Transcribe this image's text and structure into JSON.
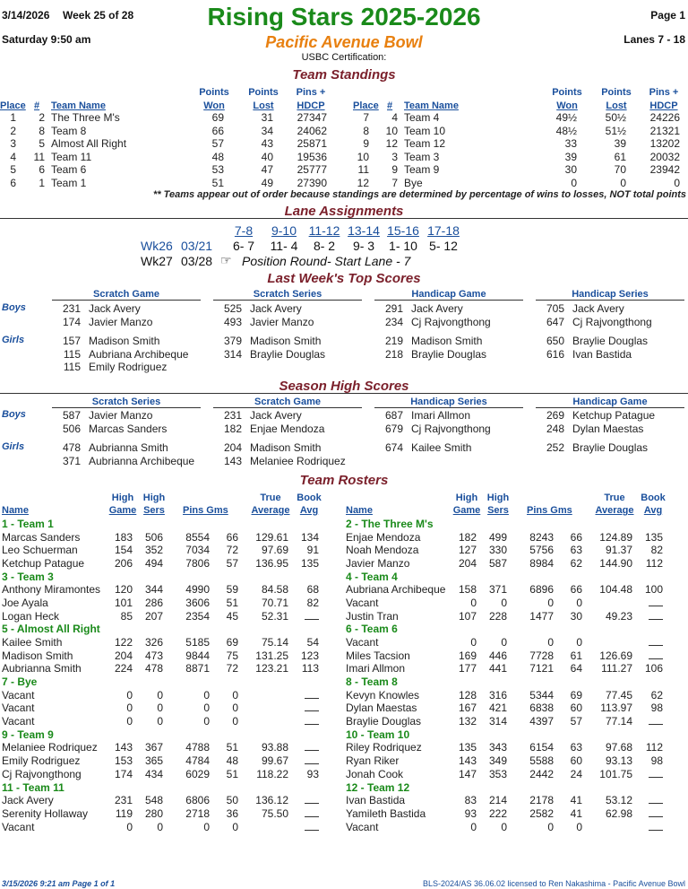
{
  "header": {
    "date": "3/14/2026",
    "week": "Week 25 of 28",
    "title": "Rising Stars 2025-2026",
    "page": "Page 1",
    "day_time": "Saturday   9:50 am",
    "bowl": "Pacific Avenue Bowl",
    "lanes": "Lanes 7 - 18",
    "usbc": "USBC Certification:"
  },
  "standings": {
    "title": "Team Standings",
    "headers": {
      "place": "Place",
      "num": "#",
      "team": "Team Name",
      "won_1": "Points",
      "won_2": "Won",
      "lost_1": "Points",
      "lost_2": "Lost",
      "pins_1": "Pins +",
      "pins_2": "HDCP"
    },
    "left": [
      {
        "place": "1",
        "num": "2",
        "team": "The Three M's",
        "won": "69",
        "lost": "31",
        "pins": "27347"
      },
      {
        "place": "2",
        "num": "8",
        "team": "Team 8",
        "won": "66",
        "lost": "34",
        "pins": "24062"
      },
      {
        "place": "3",
        "num": "5",
        "team": "Almost All Right",
        "won": "57",
        "lost": "43",
        "pins": "25871"
      },
      {
        "place": "4",
        "num": "11",
        "team": "Team 11",
        "won": "48",
        "lost": "40",
        "pins": "19536"
      },
      {
        "place": "5",
        "num": "6",
        "team": "Team 6",
        "won": "53",
        "lost": "47",
        "pins": "25777"
      },
      {
        "place": "6",
        "num": "1",
        "team": "Team 1",
        "won": "51",
        "lost": "49",
        "pins": "27390"
      }
    ],
    "right": [
      {
        "place": "7",
        "num": "4",
        "team": "Team 4",
        "won": "49½",
        "lost": "50½",
        "pins": "24226"
      },
      {
        "place": "8",
        "num": "10",
        "team": "Team 10",
        "won": "48½",
        "lost": "51½",
        "pins": "21321"
      },
      {
        "place": "9",
        "num": "12",
        "team": "Team 12",
        "won": "33",
        "lost": "39",
        "pins": "13202"
      },
      {
        "place": "10",
        "num": "3",
        "team": "Team 3",
        "won": "39",
        "lost": "61",
        "pins": "20032"
      },
      {
        "place": "11",
        "num": "9",
        "team": "Team 9",
        "won": "30",
        "lost": "70",
        "pins": "23942"
      },
      {
        "place": "12",
        "num": "7",
        "team": "Bye",
        "won": "0",
        "lost": "0",
        "pins": "0"
      }
    ],
    "note": "** Teams appear out of order because standings are determined by percentage of wins to losses, NOT total points"
  },
  "lanes": {
    "title": "Lane Assignments",
    "headers": [
      "7-8",
      "9-10",
      "11-12",
      "13-14",
      "15-16",
      "17-18"
    ],
    "wk26": {
      "week": "Wk26",
      "date": "03/21",
      "pairs": [
        "6- 7",
        "11- 4",
        "8- 2",
        "9- 3",
        "1- 10",
        "5- 12"
      ]
    },
    "wk27": {
      "week": "Wk27",
      "date": "03/28",
      "icon": "☞",
      "text": "Position Round- Start Lane - 7"
    }
  },
  "last_week": {
    "title": "Last Week's Top Scores",
    "columns": [
      "Scratch Game",
      "Scratch Series",
      "Handicap Game",
      "Handicap Series"
    ],
    "boys_label": "Boys",
    "girls_label": "Girls",
    "boys": [
      [
        {
          "s": "231",
          "n": "Jack Avery"
        },
        {
          "s": "174",
          "n": "Javier Manzo"
        }
      ],
      [
        {
          "s": "525",
          "n": "Jack Avery"
        },
        {
          "s": "493",
          "n": "Javier Manzo"
        }
      ],
      [
        {
          "s": "291",
          "n": "Jack Avery"
        },
        {
          "s": "234",
          "n": "Cj Rajvongthong"
        }
      ],
      [
        {
          "s": "705",
          "n": "Jack Avery"
        },
        {
          "s": "647",
          "n": "Cj Rajvongthong"
        }
      ]
    ],
    "girls": [
      [
        {
          "s": "157",
          "n": "Madison Smith"
        },
        {
          "s": "115",
          "n": "Aubriana Archibeque"
        },
        {
          "s": "115",
          "n": "Emily Rodriguez"
        }
      ],
      [
        {
          "s": "379",
          "n": "Madison Smith"
        },
        {
          "s": "314",
          "n": "Braylie Douglas"
        }
      ],
      [
        {
          "s": "219",
          "n": "Madison Smith"
        },
        {
          "s": "218",
          "n": "Braylie Douglas"
        }
      ],
      [
        {
          "s": "650",
          "n": "Braylie Douglas"
        },
        {
          "s": "616",
          "n": "Ivan Bastida"
        }
      ]
    ]
  },
  "season_high": {
    "title": "Season High Scores",
    "columns": [
      "Scratch Series",
      "Scratch Game",
      "Handicap Series",
      "Handicap Game"
    ],
    "boys": [
      [
        {
          "s": "587",
          "n": "Javier Manzo"
        },
        {
          "s": "506",
          "n": "Marcas Sanders"
        }
      ],
      [
        {
          "s": "231",
          "n": "Jack Avery"
        },
        {
          "s": "182",
          "n": "Enjae Mendoza"
        }
      ],
      [
        {
          "s": "687",
          "n": "Imari Allmon"
        },
        {
          "s": "679",
          "n": "Cj Rajvongthong"
        }
      ],
      [
        {
          "s": "269",
          "n": "Ketchup Patague"
        },
        {
          "s": "248",
          "n": "Dylan Maestas"
        }
      ]
    ],
    "girls": [
      [
        {
          "s": "478",
          "n": "Aubrianna Smith"
        },
        {
          "s": "371",
          "n": "Aubrianna Archibeque"
        }
      ],
      [
        {
          "s": "204",
          "n": "Madison Smith"
        },
        {
          "s": "143",
          "n": "Melaniee Rodriquez"
        }
      ],
      [
        {
          "s": "674",
          "n": "Kailee Smith"
        }
      ],
      [
        {
          "s": "252",
          "n": "Braylie Douglas"
        }
      ]
    ]
  },
  "rosters": {
    "title": "Team Rosters",
    "headers": {
      "name": "Name",
      "hg_1": "High",
      "hg_2": "Game",
      "hs_1": "High",
      "hs_2": "Sers",
      "pins": "Pins  Gms",
      "avg_1": "True",
      "avg_2": "Average",
      "book_1": "Book",
      "book_2": "Avg"
    },
    "left": [
      {
        "team": "1 - Team 1",
        "players": [
          {
            "n": "Marcas Sanders",
            "hg": "183",
            "hs": "506",
            "p": "8554",
            "g": "66",
            "a": "129.61",
            "b": "134"
          },
          {
            "n": "Leo Schuerman",
            "hg": "154",
            "hs": "352",
            "p": "7034",
            "g": "72",
            "a": "97.69",
            "b": "91"
          },
          {
            "n": "Ketchup Patague",
            "hg": "206",
            "hs": "494",
            "p": "7806",
            "g": "57",
            "a": "136.95",
            "b": "135"
          }
        ]
      },
      {
        "team": "3 - Team 3",
        "players": [
          {
            "n": "Anthony Miramontes",
            "hg": "120",
            "hs": "344",
            "p": "4990",
            "g": "59",
            "a": "84.58",
            "b": "68"
          },
          {
            "n": "Joe Ayala",
            "hg": "101",
            "hs": "286",
            "p": "3606",
            "g": "51",
            "a": "70.71",
            "b": "82"
          },
          {
            "n": "Logan Heck",
            "hg": "85",
            "hs": "207",
            "p": "2354",
            "g": "45",
            "a": "52.31",
            "b": ""
          }
        ]
      },
      {
        "team": "5 - Almost All Right",
        "players": [
          {
            "n": "Kailee Smith",
            "hg": "122",
            "hs": "326",
            "p": "5185",
            "g": "69",
            "a": "75.14",
            "b": "54"
          },
          {
            "n": "Madison Smith",
            "hg": "204",
            "hs": "473",
            "p": "9844",
            "g": "75",
            "a": "131.25",
            "b": "123"
          },
          {
            "n": "Aubrianna Smith",
            "hg": "224",
            "hs": "478",
            "p": "8871",
            "g": "72",
            "a": "123.21",
            "b": "113"
          }
        ]
      },
      {
        "team": "7 - Bye",
        "players": [
          {
            "n": "Vacant",
            "hg": "0",
            "hs": "0",
            "p": "0",
            "g": "0",
            "a": "",
            "b": ""
          },
          {
            "n": "Vacant",
            "hg": "0",
            "hs": "0",
            "p": "0",
            "g": "0",
            "a": "",
            "b": ""
          },
          {
            "n": "Vacant",
            "hg": "0",
            "hs": "0",
            "p": "0",
            "g": "0",
            "a": "",
            "b": ""
          }
        ]
      },
      {
        "team": "9 - Team 9",
        "players": [
          {
            "n": "Melaniee Rodriquez",
            "hg": "143",
            "hs": "367",
            "p": "4788",
            "g": "51",
            "a": "93.88",
            "b": ""
          },
          {
            "n": "Emily Rodriguez",
            "hg": "153",
            "hs": "365",
            "p": "4784",
            "g": "48",
            "a": "99.67",
            "b": ""
          },
          {
            "n": "Cj Rajvongthong",
            "hg": "174",
            "hs": "434",
            "p": "6029",
            "g": "51",
            "a": "118.22",
            "b": "93"
          }
        ]
      },
      {
        "team": "11 - Team 11",
        "players": [
          {
            "n": "Jack Avery",
            "hg": "231",
            "hs": "548",
            "p": "6806",
            "g": "50",
            "a": "136.12",
            "b": ""
          },
          {
            "n": "Serenity Hollaway",
            "hg": "119",
            "hs": "280",
            "p": "2718",
            "g": "36",
            "a": "75.50",
            "b": ""
          },
          {
            "n": "Vacant",
            "hg": "0",
            "hs": "0",
            "p": "0",
            "g": "0",
            "a": "",
            "b": ""
          }
        ]
      }
    ],
    "right": [
      {
        "team": "2 - The Three M's",
        "players": [
          {
            "n": "Enjae Mendoza",
            "hg": "182",
            "hs": "499",
            "p": "8243",
            "g": "66",
            "a": "124.89",
            "b": "135"
          },
          {
            "n": "Noah Mendoza",
            "hg": "127",
            "hs": "330",
            "p": "5756",
            "g": "63",
            "a": "91.37",
            "b": "82"
          },
          {
            "n": "Javier Manzo",
            "hg": "204",
            "hs": "587",
            "p": "8984",
            "g": "62",
            "a": "144.90",
            "b": "112"
          }
        ]
      },
      {
        "team": "4 - Team 4",
        "players": [
          {
            "n": "Aubriana Archibeque",
            "hg": "158",
            "hs": "371",
            "p": "6896",
            "g": "66",
            "a": "104.48",
            "b": "100"
          },
          {
            "n": "Vacant",
            "hg": "0",
            "hs": "0",
            "p": "0",
            "g": "0",
            "a": "",
            "b": ""
          },
          {
            "n": "Justin Tran",
            "hg": "107",
            "hs": "228",
            "p": "1477",
            "g": "30",
            "a": "49.23",
            "b": ""
          }
        ]
      },
      {
        "team": "6 - Team 6",
        "players": [
          {
            "n": "Vacant",
            "hg": "0",
            "hs": "0",
            "p": "0",
            "g": "0",
            "a": "",
            "b": ""
          },
          {
            "n": "Miles Tacsion",
            "hg": "169",
            "hs": "446",
            "p": "7728",
            "g": "61",
            "a": "126.69",
            "b": ""
          },
          {
            "n": "Imari Allmon",
            "hg": "177",
            "hs": "441",
            "p": "7121",
            "g": "64",
            "a": "111.27",
            "b": "106"
          }
        ]
      },
      {
        "team": "8 - Team 8",
        "players": [
          {
            "n": "Kevyn Knowles",
            "hg": "128",
            "hs": "316",
            "p": "5344",
            "g": "69",
            "a": "77.45",
            "b": "62"
          },
          {
            "n": "Dylan Maestas",
            "hg": "167",
            "hs": "421",
            "p": "6838",
            "g": "60",
            "a": "113.97",
            "b": "98"
          },
          {
            "n": "Braylie Douglas",
            "hg": "132",
            "hs": "314",
            "p": "4397",
            "g": "57",
            "a": "77.14",
            "b": ""
          }
        ]
      },
      {
        "team": "10 - Team 10",
        "players": [
          {
            "n": "Riley Rodriquez",
            "hg": "135",
            "hs": "343",
            "p": "6154",
            "g": "63",
            "a": "97.68",
            "b": "112"
          },
          {
            "n": "Ryan Riker",
            "hg": "143",
            "hs": "349",
            "p": "5588",
            "g": "60",
            "a": "93.13",
            "b": "98"
          },
          {
            "n": "Jonah Cook",
            "hg": "147",
            "hs": "353",
            "p": "2442",
            "g": "24",
            "a": "101.75",
            "b": ""
          }
        ]
      },
      {
        "team": "12 - Team 12",
        "players": [
          {
            "n": "Ivan Bastida",
            "hg": "83",
            "hs": "214",
            "p": "2178",
            "g": "41",
            "a": "53.12",
            "b": ""
          },
          {
            "n": "Yamileth Bastida",
            "hg": "93",
            "hs": "222",
            "p": "2582",
            "g": "41",
            "a": "62.98",
            "b": ""
          },
          {
            "n": "Vacant",
            "hg": "0",
            "hs": "0",
            "p": "0",
            "g": "0",
            "a": "",
            "b": ""
          }
        ]
      }
    ]
  },
  "footer": {
    "left": "3/15/2026  9:21 am  Page 1 of 1",
    "right": "BLS-2024/AS 36.06.02 licensed to Ren Nakashima - Pacific Avenue Bowl"
  }
}
